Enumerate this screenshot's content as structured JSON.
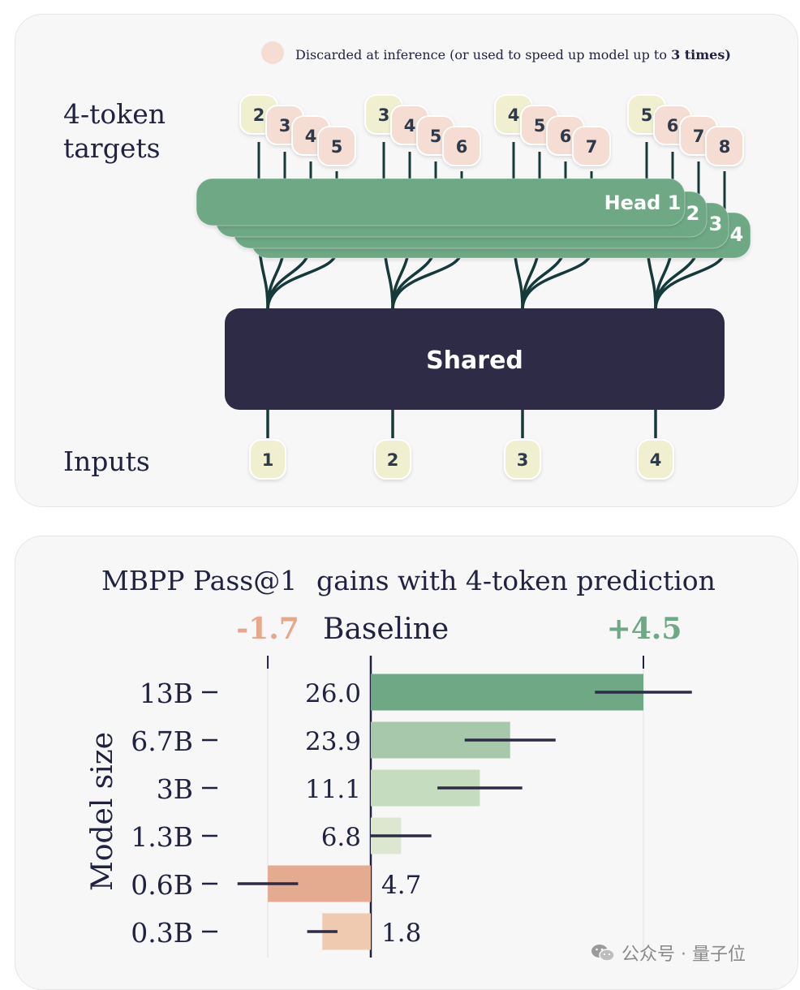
{
  "diagram": {
    "legend_text": "Discarded at inference (or used to speed up model up to ",
    "legend_bold": "3 times)",
    "targets_label_line1": "4-token",
    "targets_label_line2": "targets",
    "inputs_label": "Inputs",
    "shared_label": "Shared",
    "head_labels": [
      "Head 1",
      "2",
      "3",
      "4"
    ],
    "inputs": [
      "1",
      "2",
      "3",
      "4"
    ],
    "target_groups": [
      [
        "2",
        "3",
        "4",
        "5"
      ],
      [
        "3",
        "4",
        "5",
        "6"
      ],
      [
        "4",
        "5",
        "6",
        "7"
      ],
      [
        "5",
        "6",
        "7",
        "8"
      ]
    ]
  },
  "chart_data": {
    "type": "bar",
    "title_part1": "MBPP Pass@1",
    "title_part2": "gains with 4-token prediction",
    "ylabel": "Model size",
    "baseline_label": "Baseline",
    "min_label": "-1.7",
    "max_label": "+4.5",
    "xlim": [
      -1.7,
      4.5
    ],
    "categories": [
      "13B",
      "6.7B",
      "3B",
      "1.3B",
      "0.6B",
      "0.3B"
    ],
    "baseline_values": [
      "26.0",
      "23.9",
      "11.1",
      "6.8",
      "4.7",
      "1.8"
    ],
    "gains": [
      4.5,
      2.3,
      1.8,
      0.5,
      -1.7,
      -0.8
    ],
    "errors": [
      0.8,
      0.75,
      0.7,
      0.5,
      0.5,
      0.25
    ],
    "colors": [
      "#6ea885",
      "#a8c8ab",
      "#c6dcbf",
      "#dde7d0",
      "#e5ab90",
      "#efcab1"
    ]
  },
  "colors": {
    "green": "#6ea885",
    "dark": "#2d2b45",
    "token_yellow": "#f0f0d0",
    "token_pink": "#f5ddd3",
    "text_dark": "#1f2240",
    "neg_label": "#e8a78a",
    "pos_label": "#6ea885"
  },
  "watermark": "公众号 · 量子位"
}
